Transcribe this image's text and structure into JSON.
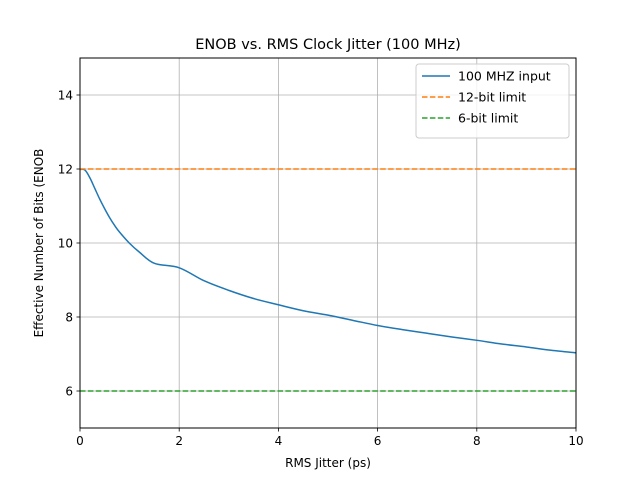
{
  "chart_data": {
    "type": "line",
    "title": "ENOB vs. RMS Clock Jitter (100 MHz)",
    "xlabel": "RMS Jitter (ps)",
    "ylabel": "Effective Number of Bits (ENOB",
    "xlim": [
      0,
      10
    ],
    "ylim": [
      5,
      15
    ],
    "xticks": [
      0,
      2,
      4,
      6,
      8,
      10
    ],
    "yticks": [
      6,
      8,
      10,
      12,
      14
    ],
    "grid": true,
    "legend_position": "top-right",
    "series": [
      {
        "name": "100 MHZ input",
        "style": "solid",
        "color": "#1f77b4",
        "x": [
          0,
          0.1,
          0.2,
          0.3,
          0.4,
          0.5,
          0.6,
          0.7,
          0.8,
          1.0,
          1.2,
          1.5,
          2,
          2.5,
          3,
          3.5,
          4,
          4.5,
          5,
          5.5,
          6,
          6.5,
          7,
          7.5,
          8,
          8.5,
          9,
          9.5,
          10
        ],
        "y": [
          11.99,
          11.97,
          11.76,
          11.47,
          11.18,
          10.92,
          10.68,
          10.47,
          10.29,
          9.99,
          9.75,
          9.45,
          9.33,
          8.98,
          8.72,
          8.5,
          8.33,
          8.17,
          8.05,
          7.91,
          7.77,
          7.66,
          7.56,
          7.46,
          7.37,
          7.27,
          7.19,
          7.1,
          7.03
        ]
      },
      {
        "name": "12-bit limit",
        "style": "dashed",
        "color": "#ff7f0e",
        "x": [
          0,
          10
        ],
        "y": [
          12,
          12
        ]
      },
      {
        "name": "6-bit limit",
        "style": "dashed",
        "color": "#2ca02c",
        "x": [
          0,
          10
        ],
        "y": [
          6,
          6
        ]
      }
    ]
  }
}
